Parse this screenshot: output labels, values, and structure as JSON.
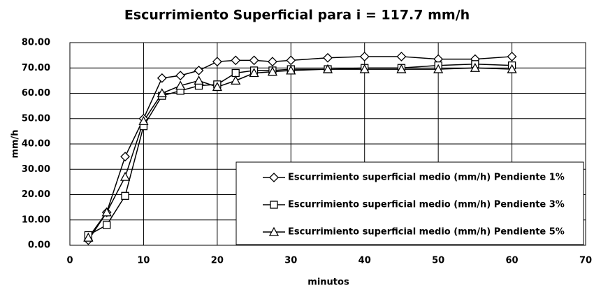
{
  "chart_data": {
    "type": "line",
    "title": "Escurrimiento Superficial  para  i = 117.7 mm/h",
    "xlabel": "minutos",
    "ylabel": "mm/h",
    "x": [
      2.5,
      5,
      7.5,
      10,
      12.5,
      15,
      17.5,
      20,
      22.5,
      25,
      27.5,
      30,
      35,
      40,
      45,
      50,
      55,
      60
    ],
    "series": [
      {
        "name": "Escurrimiento superficial medio (mm/h) Pendiente 1%",
        "color": "#000000",
        "marker": "diamond",
        "values": [
          2,
          13,
          35,
          50,
          66,
          67,
          69,
          72.5,
          73,
          73,
          72.5,
          73,
          74,
          74.5,
          74.5,
          73.5,
          73.5,
          74.5
        ]
      },
      {
        "name": "Escurrimiento superficial medio (mm/h) Pendiente 3%",
        "color": "#000000",
        "marker": "square",
        "values": [
          4,
          8,
          19.5,
          47,
          59,
          61,
          63,
          63.5,
          68,
          69,
          69,
          69.5,
          69.5,
          70,
          70,
          71,
          71.5,
          71
        ]
      },
      {
        "name": "Escurrimiento superficial medio (mm/h) Pendiente 5%",
        "color": "#000000",
        "marker": "triangle",
        "values": [
          3,
          13,
          27,
          49,
          60,
          63,
          65,
          62.5,
          65,
          68,
          68.5,
          69,
          69.5,
          69.5,
          69.5,
          69.5,
          70,
          69.5
        ]
      }
    ],
    "xlim": [
      0,
      70
    ],
    "xticks": [
      0,
      10,
      20,
      30,
      40,
      50,
      60,
      70
    ],
    "ylim": [
      0,
      80
    ],
    "yticks": [
      {
        "value": 0,
        "label": "0.00"
      },
      {
        "value": 10,
        "label": "10.00"
      },
      {
        "value": 20,
        "label": "20.00"
      },
      {
        "value": 30,
        "label": "30.00"
      },
      {
        "value": 40,
        "label": "40.00"
      },
      {
        "value": 50,
        "label": "50.00"
      },
      {
        "value": 60,
        "label": "60.00"
      },
      {
        "value": 70,
        "label": "70.00"
      },
      {
        "value": 80,
        "label": "80.00"
      }
    ],
    "grid": true,
    "legend": "lower right"
  }
}
